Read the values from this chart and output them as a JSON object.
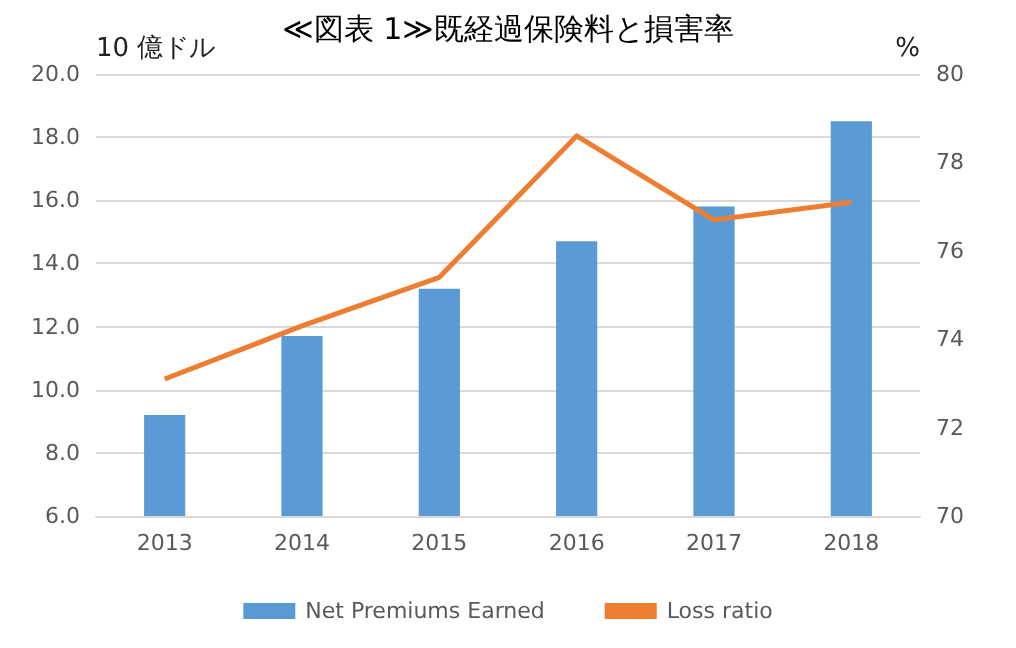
{
  "chart_data": {
    "type": "bar",
    "title": "≪図表 1≫既経過保険料と損害率",
    "ylabel": "10 億ドル",
    "y2label": "%",
    "categories": [
      "2013",
      "2014",
      "2015",
      "2016",
      "2017",
      "2018"
    ],
    "series": [
      {
        "name": "Net Premiums Earned",
        "color": "#5b9bd5",
        "values": [
          9.2,
          11.7,
          13.2,
          14.7,
          15.8,
          18.5
        ]
      },
      {
        "name": "Loss ratio",
        "type": "line",
        "axis": "y2",
        "color": "#ed7d31",
        "values": [
          73.1,
          74.3,
          75.4,
          78.6,
          76.7,
          77.1
        ]
      }
    ],
    "ylim": [
      6,
      20
    ],
    "yticks": [
      {
        "value": 6,
        "label": "6.0"
      },
      {
        "value": 8,
        "label": "8.0"
      },
      {
        "value": 10,
        "label": "10.0"
      },
      {
        "value": 12,
        "label": "12.0"
      },
      {
        "value": 14,
        "label": "14.0"
      },
      {
        "value": 16,
        "label": "16.0"
      },
      {
        "value": 18,
        "label": "18.0"
      },
      {
        "value": 20,
        "label": "20.0"
      }
    ],
    "y2lim": [
      70,
      80
    ],
    "y2ticks": [
      70,
      72,
      74,
      76,
      78,
      80
    ],
    "grid": "y",
    "legend": "bottom",
    "marker": "none",
    "line_style": "solid"
  }
}
